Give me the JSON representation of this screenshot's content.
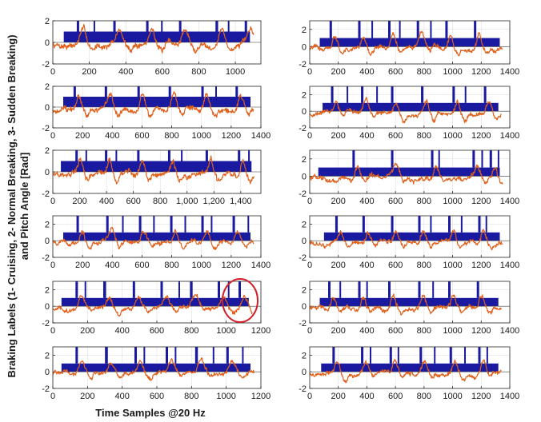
{
  "chart_data": {
    "type": "line",
    "layout": "6 rows x 2 columns of subplots",
    "xlabel": "Time Samples @20 Hz",
    "ylabel_line1": "Braking Labels (1- Cruising, 2- Normal Breaking, 3- Sudden Breaking)",
    "ylabel_line2": "and Pitch Angle [Rad]",
    "series_names": [
      "Braking label",
      "Pitch angle"
    ],
    "colors": {
      "label": "#1a1aa0",
      "pitch": "#e0601a",
      "zero_line": "#444444",
      "grid": "#d9d9d9",
      "axis": "#262626"
    },
    "annotation": {
      "type": "circle",
      "color": "#d0202a",
      "panel": "row 5, left",
      "x_center": 1080
    },
    "panels": [
      {
        "xlim": [
          0,
          1140
        ],
        "ylim": [
          -2,
          2
        ],
        "xticks": [
          "0",
          "200",
          "400",
          "600",
          "800",
          "1000"
        ],
        "yticks": [
          "2",
          "0",
          "-2"
        ],
        "label_start": 60,
        "label_end": 1080,
        "spikes": [
          140,
          340,
          520,
          700,
          900,
          1060
        ]
      },
      {
        "xlim": [
          0,
          1400
        ],
        "ylim": [
          -2,
          3
        ],
        "xticks": [
          "0",
          "200",
          "400",
          "600",
          "800",
          "1000",
          "1200",
          "1400"
        ],
        "yticks": [
          "2",
          "0",
          "-2"
        ],
        "label_start": 70,
        "label_end": 1330,
        "spikes": [
          150,
          350,
          560,
          760,
          960,
          1160
        ]
      },
      {
        "xlim": [
          0,
          1400
        ],
        "ylim": [
          -2,
          2
        ],
        "xticks": [
          "0",
          "200",
          "400",
          "600",
          "800",
          "1000",
          "1200",
          "1400"
        ],
        "yticks": [
          "2",
          "0",
          "-2"
        ],
        "label_start": 70,
        "label_end": 1330,
        "spikes": [
          150,
          360,
          580,
          790,
          1010,
          1240
        ]
      },
      {
        "xlim": [
          0,
          1400
        ],
        "ylim": [
          -2,
          3
        ],
        "xticks": [
          "0",
          "200",
          "400",
          "600",
          "800",
          "1000",
          "1200",
          "1400"
        ],
        "yticks": [
          "2",
          "0",
          "-2"
        ],
        "label_start": 90,
        "label_end": 1320,
        "spikes": [
          160,
          370,
          580,
          790,
          1010,
          1230
        ]
      },
      {
        "xlim": [
          0,
          1550
        ],
        "ylim": [
          -2,
          2
        ],
        "xticks": [
          "0",
          "200",
          "400",
          "600",
          "800",
          "1,000",
          "1,200",
          "1,400"
        ],
        "yticks": [
          "2",
          "0",
          "-2"
        ],
        "label_start": 60,
        "label_end": 1480,
        "spikes": [
          180,
          400,
          640,
          870,
          1150,
          1390
        ]
      },
      {
        "xlim": [
          0,
          1400
        ],
        "ylim": [
          -2,
          3
        ],
        "xticks": [
          "0",
          "200",
          "400",
          "600",
          "800",
          "1000",
          "1200",
          "1400"
        ],
        "yticks": [
          "2",
          "0",
          "-2"
        ],
        "label_start": 60,
        "label_end": 1330,
        "spikes": [
          310,
          580,
          860,
          1150,
          1270
        ]
      },
      {
        "xlim": [
          0,
          1400
        ],
        "ylim": [
          -2,
          3
        ],
        "xticks": [
          "0",
          "200",
          "400",
          "600",
          "800",
          "1000",
          "1200",
          "1400"
        ],
        "yticks": [
          "2",
          "0",
          "-2"
        ],
        "label_start": 70,
        "label_end": 1330,
        "spikes": [
          170,
          370,
          590,
          800,
          1010,
          1220
        ]
      },
      {
        "xlim": [
          0,
          1400
        ],
        "ylim": [
          -2,
          3
        ],
        "xticks": [
          "0",
          "200",
          "400",
          "600",
          "800",
          "1000",
          "1200",
          "1400"
        ],
        "yticks": [
          "2",
          "0",
          "-2"
        ],
        "label_start": 100,
        "label_end": 1330,
        "spikes": [
          190,
          380,
          580,
          770,
          980,
          1190
        ]
      },
      {
        "xlim": [
          0,
          1200
        ],
        "ylim": [
          -2,
          3
        ],
        "xticks": [
          "0",
          "200",
          "400",
          "600",
          "800",
          "1000",
          "1200"
        ],
        "yticks": [
          "2",
          "0",
          "-2"
        ],
        "label_start": 50,
        "label_end": 1130,
        "spikes": [
          140,
          300,
          470,
          630,
          800,
          960,
          1080
        ]
      },
      {
        "xlim": [
          0,
          1400
        ],
        "ylim": [
          -2,
          3
        ],
        "xticks": [
          "0",
          "200",
          "400",
          "600",
          "800",
          "1000",
          "1200",
          "1400"
        ],
        "yticks": [
          "2",
          "0",
          "-2"
        ],
        "label_start": 70,
        "label_end": 1320,
        "spikes": [
          140,
          350,
          560,
          770,
          980,
          1180
        ]
      },
      {
        "xlim": [
          0,
          1200
        ],
        "ylim": [
          -2,
          3
        ],
        "xticks": [
          "0",
          "200",
          "400",
          "600",
          "800",
          "1000",
          "1200"
        ],
        "yticks": [
          "2",
          "0",
          "-2"
        ],
        "label_start": 50,
        "label_end": 1140,
        "spikes": [
          140,
          310,
          480,
          660,
          830,
          1010
        ]
      },
      {
        "xlim": [
          0,
          1400
        ],
        "ylim": [
          -2,
          3
        ],
        "xticks": [
          "0",
          "200",
          "400",
          "600",
          "800",
          "1000",
          "1200",
          "1400"
        ],
        "yticks": [
          "2",
          "0",
          "-2"
        ],
        "label_start": 80,
        "label_end": 1320,
        "spikes": [
          170,
          370,
          570,
          780,
          990,
          1190
        ]
      }
    ]
  }
}
